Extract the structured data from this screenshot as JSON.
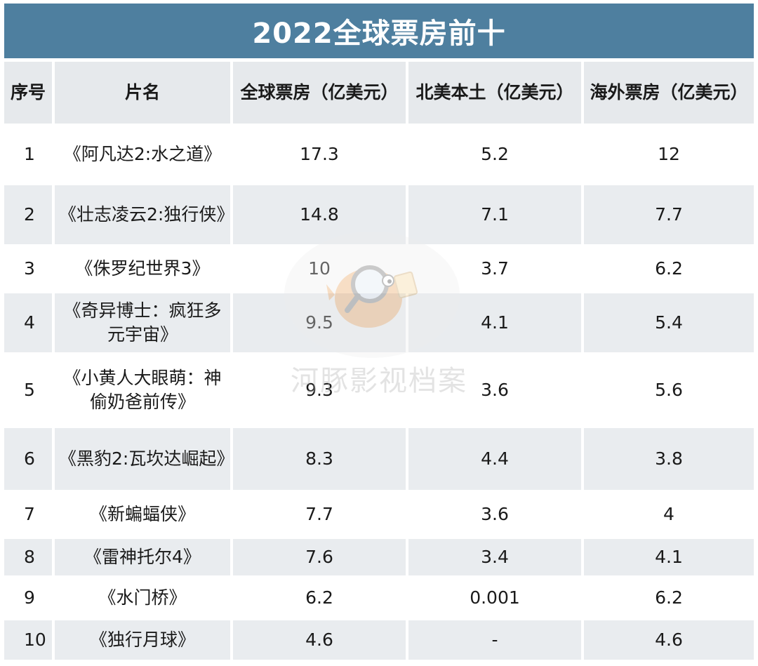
{
  "chart_data": {
    "type": "table",
    "title": "2022全球票房前十",
    "columns": [
      "序号",
      "片名",
      "全球票房（亿美元）",
      "北美本土（亿美元）",
      "海外票房（亿美元）"
    ],
    "rows": [
      {
        "rank": "1",
        "title": "《阿凡达2:水之道》",
        "global": "17.3",
        "north_america": "5.2",
        "overseas": "12"
      },
      {
        "rank": "2",
        "title": "《壮志凌云2:独行侠》",
        "global": "14.8",
        "north_america": "7.1",
        "overseas": "7.7"
      },
      {
        "rank": "3",
        "title": "《侏罗纪世界3》",
        "global": "10",
        "north_america": "3.7",
        "overseas": "6.2"
      },
      {
        "rank": "4",
        "title": "《奇异博士：疯狂多元宇宙》",
        "global": "9.5",
        "north_america": "4.1",
        "overseas": "5.4"
      },
      {
        "rank": "5",
        "title": "《小黄人大眼萌：神偷奶爸前传》",
        "global": "9.3",
        "north_america": "3.6",
        "overseas": "5.6"
      },
      {
        "rank": "6",
        "title": "《黑豹2:瓦坎达崛起》",
        "global": "8.3",
        "north_america": "4.4",
        "overseas": "3.8"
      },
      {
        "rank": "7",
        "title": "《新蝙蝠侠》",
        "global": "7.7",
        "north_america": "3.6",
        "overseas": "4"
      },
      {
        "rank": "8",
        "title": "《雷神托尔4》",
        "global": "7.6",
        "north_america": "3.4",
        "overseas": "4.1"
      },
      {
        "rank": "9",
        "title": "《水门桥》",
        "global": "6.2",
        "north_america": "0.001",
        "overseas": "6.2"
      },
      {
        "rank": "10",
        "title": "《独行月球》",
        "global": "4.6",
        "north_america": "-",
        "overseas": "4.6"
      }
    ]
  },
  "watermark": {
    "text": "河豚影视档案",
    "icon": "pufferfish-magnifier-icon"
  },
  "colors": {
    "title_bg": "#4e7f9f",
    "header_bg": "#e6e9ec",
    "row_alt_bg": "#e9ecef"
  }
}
